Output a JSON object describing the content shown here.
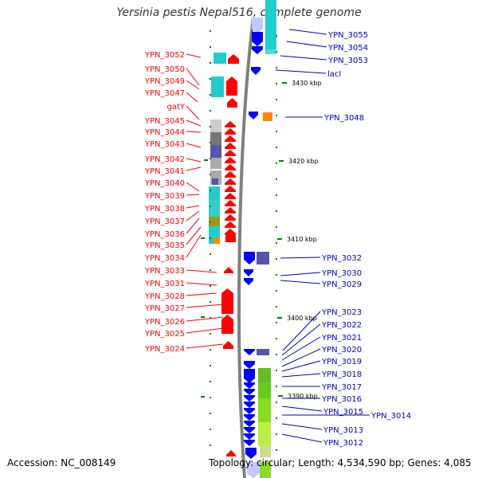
{
  "title": "Yersinia pestis Nepal516, complete genome",
  "accession": "Accession: NC_008149",
  "topology": "Topology: circular; Length: 4,534,590 bp; Genes: 4,085",
  "colors": {
    "forward_label": "#ff0000",
    "reverse_label": "#0000cc",
    "forward_gene": "#ff0000",
    "reverse_gene": "#0000ff",
    "backbone": "#808080",
    "tick": "#008000",
    "cog_cyan": "#22cccc",
    "cog_green": "#88dd22",
    "cog_grey": "#999999",
    "cog_slate": "#5555aa",
    "cog_orange": "#ff8800"
  },
  "kbp_marks": [
    "3430 kbp",
    "3420 kbp",
    "3410 kbp",
    "3400 kbp",
    "3390 kbp"
  ],
  "forward_labels": [
    "YPN_3052",
    "YPN_3050",
    "YPN_3049",
    "YPN_3047",
    "gatY",
    "YPN_3045",
    "YPN_3044",
    "YPN_3043",
    "YPN_3042",
    "YPN_3041",
    "YPN_3040",
    "YPN_3039",
    "YPN_3038",
    "YPN_3037",
    "YPN_3036",
    "YPN_3035",
    "YPN_3034",
    "YPN_3033",
    "YPN_3031",
    "YPN_3028",
    "YPN_3027",
    "YPN_3026",
    "YPN_3025",
    "YPN_3024"
  ],
  "reverse_labels": [
    "YPN_3055",
    "YPN_3054",
    "YPN_3053",
    "lacI",
    "YPN_3048",
    "YPN_3032",
    "YPN_3030",
    "YPN_3029",
    "YPN_3023",
    "YPN_3022",
    "YPN_3021",
    "YPN_3020",
    "YPN_3019",
    "YPN_3018",
    "YPN_3017",
    "YPN_3016",
    "YPN_3015",
    "YPN_3014",
    "YPN_3013",
    "YPN_3012"
  ]
}
